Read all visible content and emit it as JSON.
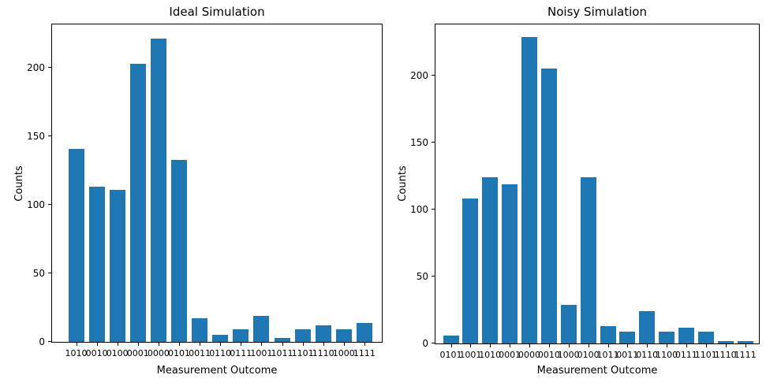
{
  "figure": {
    "background": "#ffffff",
    "bar_color": "#1f77b4"
  },
  "chart_data": [
    {
      "type": "bar",
      "title": "Ideal Simulation",
      "xlabel": "Measurement Outcome",
      "ylabel": "Counts",
      "categories": [
        "1010",
        "0010",
        "0100",
        "0001",
        "0000",
        "0101",
        "0011",
        "0110",
        "0111",
        "1001",
        "1011",
        "1101",
        "1110",
        "1000",
        "1111"
      ],
      "values": [
        141,
        113,
        111,
        203,
        221,
        133,
        17,
        5,
        9,
        19,
        3,
        9,
        12,
        9,
        14
      ],
      "ylim": [
        0,
        232
      ],
      "yticks": [
        0,
        50,
        100,
        150,
        200
      ],
      "grid": false,
      "legend": null
    },
    {
      "type": "bar",
      "title": "Noisy Simulation",
      "xlabel": "Measurement Outcome",
      "ylabel": "Counts",
      "categories": [
        "0101",
        "1001",
        "1010",
        "0001",
        "0000",
        "0010",
        "1000",
        "0100",
        "1011",
        "0011",
        "0110",
        "1100",
        "0111",
        "1101",
        "1110",
        "1111"
      ],
      "values": [
        6,
        108,
        124,
        119,
        229,
        205,
        29,
        124,
        13,
        9,
        24,
        9,
        12,
        9,
        2,
        2
      ],
      "ylim": [
        0,
        239
      ],
      "yticks": [
        0,
        50,
        100,
        150,
        200
      ],
      "grid": false,
      "legend": null
    }
  ]
}
